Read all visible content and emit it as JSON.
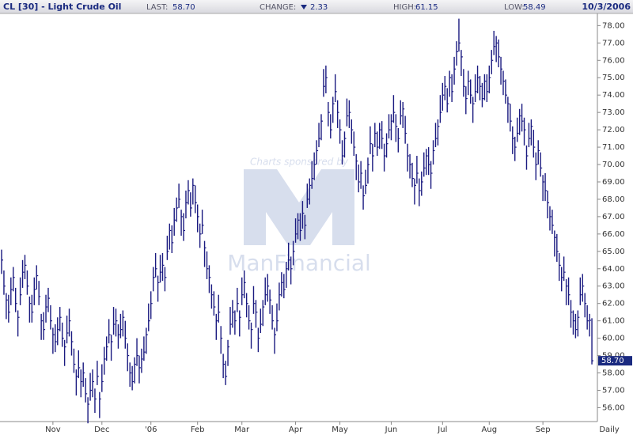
{
  "header": {
    "title": "CL [30] - Light Crude Oil",
    "date": "10/3/2006",
    "stats": [
      {
        "name": "LAST:",
        "label": "58.70"
      },
      {
        "name": "CHANGE:",
        "label": "2.33",
        "direction": "down"
      },
      {
        "name": "HIGH:",
        "label": "61.15"
      },
      {
        "name": "LOW:",
        "label": "58.49"
      }
    ]
  },
  "watermark": {
    "line1": "Charts sponsored by",
    "line2": "ManFinancial"
  },
  "chart_data": {
    "type": "ohlc",
    "color": "#1a1a80",
    "x_label": "Daily",
    "xlim": [
      0,
      254
    ],
    "xticks": [
      {
        "value": 22,
        "label": "Nov"
      },
      {
        "value": 43,
        "label": "Dec"
      },
      {
        "value": 64,
        "label": "'06"
      },
      {
        "value": 84,
        "label": "Feb"
      },
      {
        "value": 103,
        "label": "Mar"
      },
      {
        "value": 126,
        "label": "Apr"
      },
      {
        "value": 145,
        "label": "May"
      },
      {
        "value": 167,
        "label": "Jun"
      },
      {
        "value": 189,
        "label": "Jul"
      },
      {
        "value": 209,
        "label": "Aug"
      },
      {
        "value": 232,
        "label": "Sep"
      }
    ],
    "ylim": [
      55.2,
      78.7
    ],
    "yticks": [
      {
        "value": 56,
        "label": "56.00"
      },
      {
        "value": 57,
        "label": "57.00"
      },
      {
        "value": 58,
        "label": "58.00"
      },
      {
        "value": 59,
        "label": "59.00"
      },
      {
        "value": 60,
        "label": "60.00"
      },
      {
        "value": 61,
        "label": "61.00"
      },
      {
        "value": 62,
        "label": "62.00"
      },
      {
        "value": 63,
        "label": "63.00"
      },
      {
        "value": 64,
        "label": "64.00"
      },
      {
        "value": 65,
        "label": "65.00"
      },
      {
        "value": 66,
        "label": "66.00"
      },
      {
        "value": 67,
        "label": "67.00"
      },
      {
        "value": 68,
        "label": "68.00"
      },
      {
        "value": 69,
        "label": "69.00"
      },
      {
        "value": 70,
        "label": "70.00"
      },
      {
        "value": 71,
        "label": "71.00"
      },
      {
        "value": 72,
        "label": "72.00"
      },
      {
        "value": 73,
        "label": "73.00"
      },
      {
        "value": 74,
        "label": "74.00"
      },
      {
        "value": 75,
        "label": "75.00"
      },
      {
        "value": 76,
        "label": "76.00"
      },
      {
        "value": 77,
        "label": "77.00"
      },
      {
        "value": 78,
        "label": "78.00"
      }
    ],
    "high": [
      65.1,
      63.9,
      62.6,
      62.5,
      63.5,
      64.1,
      62.9,
      61.6,
      63.5,
      64.5,
      64.8,
      63.9,
      62.4,
      62.5,
      63.5,
      64.2,
      63.3,
      61.4,
      61.5,
      62.5,
      62.9,
      61.9,
      60.6,
      60.8,
      61.2,
      61.8,
      60.9,
      59.9,
      61.3,
      61.7,
      60.4,
      59.4,
      58.2,
      59.3,
      58.2,
      58.6,
      57.7,
      56.6,
      58.0,
      58.2,
      57.1,
      58.7,
      56.9,
      58.5,
      59.5,
      60.1,
      61.1,
      60.2,
      61.8,
      61.7,
      60.8,
      61.4,
      61.6,
      61.0,
      59.7,
      58.6,
      58.4,
      58.9,
      60.0,
      59.0,
      59.4,
      60.1,
      60.6,
      62.0,
      62.7,
      64.1,
      64.9,
      63.6,
      64.8,
      64.9,
      64.1,
      65.9,
      66.6,
      66.5,
      67.5,
      68.1,
      68.9,
      67.4,
      67.2,
      68.5,
      69.1,
      68.4,
      69.2,
      68.8,
      67.7,
      66.6,
      67.4,
      65.6,
      65.0,
      64.2,
      63.1,
      62.7,
      61.4,
      62.5,
      60.7,
      59.1,
      58.7,
      59.9,
      61.8,
      62.2,
      61.6,
      62.9,
      61.6,
      63.5,
      63.9,
      62.6,
      61.9,
      60.9,
      63.0,
      62.2,
      60.6,
      61.7,
      62.2,
      63.5,
      63.7,
      62.8,
      61.9,
      60.6,
      62.0,
      63.2,
      63.8,
      63.7,
      64.4,
      65.5,
      64.7,
      65.6,
      66.9,
      67.2,
      67.2,
      67.9,
      67.1,
      68.9,
      69.2,
      70.2,
      70.7,
      71.4,
      72.4,
      72.9,
      75.5,
      75.7,
      73.6,
      72.9,
      73.9,
      75.2,
      73.7,
      72.6,
      71.4,
      71.9,
      73.8,
      73.7,
      72.6,
      71.9,
      70.6,
      70.0,
      70.2,
      68.8,
      69.7,
      70.4,
      72.2,
      71.2,
      72.4,
      71.9,
      72.4,
      72.5,
      71.2,
      71.8,
      72.9,
      72.9,
      74.0,
      72.9,
      72.1,
      73.7,
      73.6,
      72.8,
      71.2,
      70.6,
      70.1,
      69.2,
      70.5,
      69.2,
      69.6,
      70.7,
      70.9,
      71.0,
      70.2,
      71.4,
      72.4,
      72.6,
      74.0,
      74.7,
      75.1,
      74.4,
      75.4,
      75.2,
      76.2,
      77.1,
      78.4,
      76.6,
      75.5,
      74.5,
      75.4,
      74.9,
      73.9,
      75.2,
      75.7,
      75.1,
      74.7,
      75.2,
      75.2,
      75.7,
      76.6,
      77.7,
      77.4,
      77.2,
      76.2,
      75.4,
      74.9,
      73.9,
      73.5,
      72.2,
      71.6,
      72.7,
      73.2,
      73.5,
      72.7,
      71.1,
      72.4,
      72.6,
      72.0,
      70.7,
      71.4,
      70.7,
      69.4,
      69.5,
      68.5,
      67.6,
      67.4,
      66.2,
      66.0,
      64.9,
      64.1,
      64.7,
      63.4,
      63.5,
      62.2,
      61.6,
      61.4,
      61.6,
      63.5,
      63.7,
      62.6,
      61.9,
      61.4,
      61.15
    ],
    "low": [
      63.7,
      62.5,
      61.1,
      60.9,
      61.9,
      62.7,
      61.5,
      60.1,
      61.9,
      62.9,
      63.4,
      62.5,
      60.9,
      60.9,
      61.9,
      62.8,
      61.9,
      59.9,
      59.9,
      60.9,
      61.5,
      60.5,
      59.1,
      59.2,
      59.6,
      60.4,
      59.5,
      58.4,
      59.7,
      60.1,
      59.0,
      58.0,
      56.7,
      57.7,
      56.6,
      57.2,
      56.3,
      55.1,
      56.4,
      56.6,
      55.7,
      57.3,
      55.4,
      56.9,
      57.9,
      58.7,
      59.7,
      58.7,
      60.2,
      60.1,
      59.4,
      60.0,
      60.1,
      59.4,
      58.1,
      57.2,
      57.0,
      57.4,
      58.4,
      57.4,
      58.0,
      58.7,
      59.1,
      60.4,
      61.1,
      62.7,
      63.5,
      62.1,
      63.2,
      63.3,
      62.7,
      64.5,
      65.1,
      64.9,
      65.9,
      66.7,
      67.5,
      65.9,
      65.6,
      66.9,
      67.7,
      67.0,
      67.7,
      67.2,
      66.1,
      65.2,
      66.0,
      64.1,
      63.4,
      62.6,
      61.7,
      61.3,
      59.9,
      60.9,
      59.1,
      57.7,
      57.3,
      58.4,
      60.2,
      60.6,
      60.2,
      61.5,
      60.1,
      61.9,
      62.3,
      61.2,
      60.5,
      59.4,
      61.4,
      60.6,
      59.2,
      60.3,
      60.7,
      61.9,
      62.1,
      61.4,
      60.5,
      59.1,
      60.4,
      61.6,
      62.4,
      62.3,
      62.9,
      63.9,
      63.1,
      64.2,
      65.5,
      65.7,
      65.6,
      66.3,
      65.7,
      67.5,
      67.7,
      68.6,
      69.1,
      70.0,
      71.0,
      71.4,
      73.9,
      74.1,
      72.2,
      71.5,
      72.4,
      73.6,
      72.1,
      71.2,
      70.0,
      70.4,
      72.2,
      72.1,
      71.2,
      70.5,
      69.1,
      68.4,
      68.6,
      67.4,
      68.3,
      68.9,
      70.6,
      69.6,
      71.0,
      70.5,
      70.9,
      70.9,
      69.6,
      70.4,
      71.5,
      71.4,
      72.4,
      71.3,
      70.7,
      72.3,
      72.1,
      71.2,
      69.6,
      69.2,
      68.7,
      67.7,
      68.9,
      67.6,
      68.2,
      69.3,
      69.4,
      69.4,
      68.6,
      70.0,
      71.0,
      71.1,
      72.4,
      73.1,
      73.7,
      73.0,
      73.9,
      73.6,
      74.6,
      75.7,
      76.5,
      75.1,
      73.9,
      72.9,
      74.0,
      73.5,
      72.4,
      73.6,
      74.1,
      73.7,
      73.3,
      73.7,
      73.6,
      74.1,
      75.2,
      76.3,
      75.9,
      75.6,
      74.6,
      74.0,
      73.5,
      72.4,
      71.9,
      70.6,
      70.2,
      71.3,
      71.7,
      71.9,
      71.1,
      69.7,
      71.0,
      71.1,
      70.4,
      69.1,
      70.0,
      69.3,
      67.9,
      67.9,
      66.9,
      66.2,
      66.0,
      64.7,
      64.4,
      63.3,
      62.7,
      63.3,
      61.9,
      61.9,
      60.6,
      60.2,
      60.0,
      60.1,
      61.9,
      62.1,
      61.2,
      60.5,
      60.1,
      58.49
    ],
    "close": [
      64.5,
      63.0,
      62.2,
      61.5,
      62.8,
      63.5,
      62.0,
      61.2,
      62.5,
      63.8,
      64.2,
      63.0,
      62.0,
      61.5,
      62.8,
      63.6,
      62.4,
      61.0,
      60.5,
      61.8,
      62.3,
      61.0,
      60.2,
      59.8,
      60.5,
      61.2,
      60.0,
      59.5,
      60.3,
      61.0,
      59.8,
      58.5,
      57.8,
      58.3,
      57.5,
      58.0,
      56.8,
      56.2,
      57.0,
      57.5,
      56.5,
      57.8,
      56.5,
      57.5,
      58.8,
      59.5,
      60.2,
      59.8,
      60.8,
      61.0,
      60.2,
      60.5,
      61.2,
      60.0,
      59.0,
      58.0,
      57.5,
      58.5,
      59.0,
      58.3,
      58.8,
      59.2,
      60.2,
      61.0,
      62.0,
      63.5,
      64.0,
      63.2,
      63.8,
      64.2,
      63.5,
      65.0,
      66.2,
      65.5,
      66.8,
      67.5,
      68.0,
      67.0,
      66.2,
      67.8,
      68.5,
      67.5,
      68.8,
      67.8,
      67.0,
      66.0,
      66.5,
      65.2,
      64.0,
      63.5,
      62.5,
      61.8,
      61.0,
      61.5,
      60.0,
      58.5,
      57.8,
      59.5,
      60.8,
      61.5,
      61.0,
      62.0,
      61.2,
      62.5,
      63.2,
      62.0,
      61.0,
      60.5,
      62.0,
      61.5,
      60.0,
      60.8,
      61.8,
      62.5,
      63.0,
      62.2,
      61.0,
      60.2,
      61.0,
      62.5,
      63.2,
      62.8,
      64.0,
      64.5,
      64.0,
      65.0,
      66.0,
      66.8,
      66.2,
      67.2,
      66.5,
      68.0,
      68.8,
      69.2,
      70.0,
      70.8,
      71.5,
      72.5,
      74.5,
      75.0,
      73.0,
      72.0,
      73.5,
      74.2,
      73.0,
      72.0,
      70.5,
      71.5,
      72.8,
      73.0,
      72.0,
      71.0,
      70.2,
      69.0,
      69.5,
      68.2,
      68.8,
      70.0,
      71.2,
      70.5,
      71.8,
      71.0,
      72.0,
      71.5,
      70.5,
      71.2,
      72.0,
      72.5,
      73.0,
      72.2,
      71.5,
      72.8,
      73.2,
      71.8,
      70.5,
      70.0,
      69.2,
      68.8,
      69.5,
      68.5,
      69.0,
      69.8,
      70.5,
      70.0,
      69.5,
      70.8,
      71.5,
      72.2,
      73.0,
      74.0,
      74.5,
      73.5,
      75.0,
      74.2,
      75.5,
      76.5,
      77.0,
      76.2,
      74.5,
      73.8,
      74.8,
      74.0,
      73.5,
      74.2,
      75.0,
      74.5,
      73.8,
      74.8,
      74.2,
      75.0,
      76.0,
      76.8,
      77.0,
      76.2,
      75.5,
      74.8,
      74.0,
      73.5,
      72.5,
      71.5,
      71.0,
      71.8,
      72.8,
      72.5,
      72.0,
      70.5,
      71.5,
      72.2,
      71.0,
      70.0,
      70.8,
      69.8,
      69.0,
      68.5,
      67.8,
      67.0,
      66.5,
      65.8,
      65.0,
      64.2,
      63.5,
      63.8,
      63.0,
      62.5,
      61.5,
      61.0,
      60.5,
      61.2,
      62.5,
      63.0,
      62.0,
      61.0,
      61.03,
      58.7
    ]
  }
}
